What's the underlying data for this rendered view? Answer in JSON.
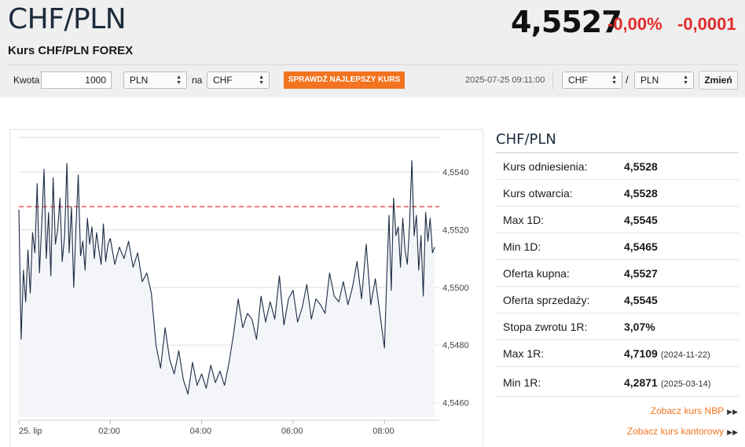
{
  "header": {
    "title": "CHF/PLN",
    "subtitle": "Kurs CHF/PLN FOREX",
    "price": "4,5527",
    "change_pct": "-0,00%",
    "change_abs": "-0,0001",
    "colors": {
      "negative": "#e32b2b",
      "accent": "#f27420"
    }
  },
  "converter": {
    "amount_label": "Kwota",
    "amount_value": "1000",
    "from_currency": "PLN",
    "to_label": "na",
    "to_currency": "CHF",
    "check_button": "SPRAWDŹ NAJLEPSZY KURS",
    "timestamp": "2025-07-25 09:11:00",
    "pair_base": "CHF",
    "pair_separator": "/",
    "pair_quote": "PLN",
    "change_button": "Zmień"
  },
  "sidebar": {
    "title": "CHF/PLN",
    "rows": [
      {
        "label": "Kurs odniesienia:",
        "value": "4,5528",
        "date": ""
      },
      {
        "label": "Kurs otwarcia:",
        "value": "4,5528",
        "date": ""
      },
      {
        "label": "Max 1D:",
        "value": "4,5545",
        "date": ""
      },
      {
        "label": "Min 1D:",
        "value": "4,5465",
        "date": ""
      },
      {
        "label": "Oferta kupna:",
        "value": "4,5527",
        "date": ""
      },
      {
        "label": "Oferta sprzedaży:",
        "value": "4,5545",
        "date": ""
      },
      {
        "label": "Stopa zwrotu 1R:",
        "value": "3,07%",
        "date": ""
      },
      {
        "label": "Max 1R:",
        "value": "4,7109",
        "date": "(2024-11-22)"
      },
      {
        "label": "Min 1R:",
        "value": "4,2871",
        "date": "(2025-03-14)"
      }
    ],
    "links": [
      {
        "label": "Zobacz kurs NBP",
        "icon": "double-chevron-right-icon"
      },
      {
        "label": "Zobacz kurs kantorowy",
        "icon": "double-chevron-right-icon"
      }
    ]
  },
  "chart_data": {
    "type": "line",
    "title": "",
    "xlabel": "",
    "ylabel": "",
    "x_ticks": [
      "25. lip",
      "02:00",
      "04:00",
      "06:00",
      "08:00"
    ],
    "y_ticks": [
      "4,5460",
      "4,5480",
      "4,5500",
      "4,5520",
      "4,5540"
    ],
    "ylim": [
      4.5455,
      4.5552
    ],
    "xlim_hours": [
      0,
      9.2
    ],
    "reference_line": {
      "value": 4.5528,
      "color": "#e8474a",
      "style": "dashed"
    },
    "line_color": "#1c2b45",
    "fill_color": "#f3f5f8",
    "grid": "horizontal",
    "series": [
      {
        "name": "",
        "x_hours": [
          0.0,
          0.05,
          0.1,
          0.15,
          0.2,
          0.25,
          0.3,
          0.35,
          0.4,
          0.45,
          0.5,
          0.55,
          0.6,
          0.65,
          0.7,
          0.75,
          0.8,
          0.85,
          0.9,
          0.95,
          1.0,
          1.05,
          1.1,
          1.15,
          1.2,
          1.25,
          1.3,
          1.35,
          1.4,
          1.45,
          1.5,
          1.55,
          1.6,
          1.65,
          1.7,
          1.75,
          1.8,
          1.85,
          1.9,
          1.95,
          2.0,
          2.1,
          2.2,
          2.3,
          2.4,
          2.5,
          2.6,
          2.7,
          2.8,
          2.9,
          3.0,
          3.1,
          3.2,
          3.3,
          3.4,
          3.5,
          3.6,
          3.7,
          3.8,
          3.9,
          4.0,
          4.1,
          4.2,
          4.3,
          4.4,
          4.5,
          4.6,
          4.7,
          4.8,
          4.9,
          5.0,
          5.1,
          5.2,
          5.3,
          5.4,
          5.5,
          5.6,
          5.7,
          5.8,
          5.9,
          6.0,
          6.1,
          6.2,
          6.3,
          6.4,
          6.5,
          6.6,
          6.7,
          6.8,
          6.9,
          7.0,
          7.1,
          7.2,
          7.3,
          7.4,
          7.5,
          7.6,
          7.7,
          7.8,
          7.9,
          8.0,
          8.05,
          8.1,
          8.15,
          8.2,
          8.25,
          8.3,
          8.35,
          8.4,
          8.45,
          8.5,
          8.55,
          8.6,
          8.65,
          8.7,
          8.75,
          8.8,
          8.85,
          8.9,
          8.95,
          9.0,
          9.05,
          9.1
        ],
        "values": [
          4.5527,
          4.5482,
          4.5506,
          4.5495,
          4.5513,
          4.5498,
          4.5519,
          4.5512,
          4.5536,
          4.5505,
          4.5522,
          4.5541,
          4.551,
          4.5526,
          4.5504,
          4.5538,
          4.5515,
          4.552,
          4.5531,
          4.5509,
          4.5518,
          4.5543,
          4.5512,
          4.5528,
          4.55,
          4.5521,
          4.5539,
          4.5511,
          4.5516,
          4.5506,
          4.5524,
          4.5515,
          4.5521,
          4.551,
          4.5519,
          4.5513,
          4.5508,
          4.5522,
          4.5509,
          4.5515,
          4.5517,
          4.5508,
          4.5514,
          4.551,
          4.5516,
          4.5507,
          4.5512,
          4.5502,
          4.5505,
          4.5498,
          4.548,
          4.5472,
          4.5486,
          4.5475,
          4.547,
          4.5478,
          4.5468,
          4.5463,
          4.5474,
          4.5466,
          4.547,
          4.5465,
          4.5473,
          4.5467,
          4.5471,
          4.5466,
          4.5474,
          4.5484,
          4.5496,
          4.5486,
          4.5491,
          4.5489,
          4.5482,
          4.5497,
          4.5488,
          4.5495,
          4.5489,
          4.5504,
          4.5487,
          4.5496,
          4.5499,
          4.5488,
          4.5493,
          4.5501,
          4.5489,
          4.5496,
          4.5494,
          4.5491,
          4.5505,
          4.5497,
          4.5495,
          4.5502,
          4.5494,
          4.55,
          4.5509,
          4.5496,
          4.5515,
          4.5494,
          4.5503,
          4.5491,
          4.5479,
          4.5503,
          4.5525,
          4.5499,
          4.5531,
          4.5518,
          4.5521,
          4.5507,
          4.5524,
          4.5513,
          4.5508,
          4.5522,
          4.5544,
          4.5518,
          4.5525,
          4.5506,
          4.5518,
          4.5497,
          4.5526,
          4.5516,
          4.5524,
          4.5512,
          4.5514
        ]
      }
    ]
  }
}
